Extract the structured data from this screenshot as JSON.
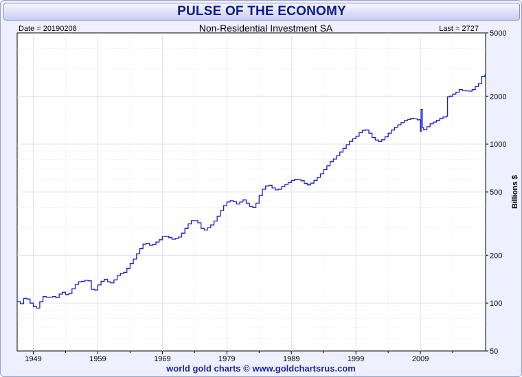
{
  "header": {
    "title": "PULSE OF THE ECONOMY"
  },
  "chart_header": {
    "date_label": "Date = 20190208",
    "last_label": "Last = 2727"
  },
  "footer": {
    "credit": "world gold charts © www.goldchartsrus.com"
  },
  "colors": {
    "line": "#1a1adc",
    "grid": "#d7dcea",
    "title_text": "#0a1a8a",
    "footer_text": "#1a2aa0"
  },
  "chart_data": {
    "type": "line",
    "title": "Non-Residential Investment SA",
    "ylabel": "Billions $",
    "xlabel": "",
    "y_scale": "log",
    "ylim": [
      50,
      5000
    ],
    "xlim": [
      1946.5,
      2019.1
    ],
    "y_ticks": [
      {
        "value": 50,
        "label": "50"
      },
      {
        "value": 100,
        "label": "100"
      },
      {
        "value": 200,
        "label": "200"
      },
      {
        "value": 500,
        "label": "500"
      },
      {
        "value": 1000,
        "label": "1000"
      },
      {
        "value": 2000,
        "label": "2000"
      },
      {
        "value": 5000,
        "label": "5000"
      }
    ],
    "x_ticks": [
      {
        "value": 1949,
        "label": "1949"
      },
      {
        "value": 1959,
        "label": "1959"
      },
      {
        "value": 1969,
        "label": "1969"
      },
      {
        "value": 1979,
        "label": "1979"
      },
      {
        "value": 1989,
        "label": "1989"
      },
      {
        "value": 1999,
        "label": "1999"
      },
      {
        "value": 2009,
        "label": "2009"
      }
    ],
    "grid": true,
    "series": [
      {
        "values": [
          [
            1946.5,
            102
          ],
          [
            1947.0,
            99
          ],
          [
            1947.5,
            107
          ],
          [
            1948.0,
            106
          ],
          [
            1948.5,
            100
          ],
          [
            1949.0,
            95
          ],
          [
            1949.5,
            93
          ],
          [
            1950.0,
            102
          ],
          [
            1950.5,
            110
          ],
          [
            1951.0,
            109
          ],
          [
            1951.5,
            109
          ],
          [
            1952.0,
            110
          ],
          [
            1952.5,
            108
          ],
          [
            1953.0,
            114
          ],
          [
            1953.5,
            117
          ],
          [
            1954.0,
            113
          ],
          [
            1954.5,
            115
          ],
          [
            1955.0,
            123
          ],
          [
            1955.5,
            131
          ],
          [
            1956.0,
            136
          ],
          [
            1956.5,
            137
          ],
          [
            1957.0,
            139
          ],
          [
            1957.5,
            138
          ],
          [
            1958.0,
            122
          ],
          [
            1958.5,
            121
          ],
          [
            1959.0,
            130
          ],
          [
            1959.5,
            137
          ],
          [
            1960.0,
            141
          ],
          [
            1960.5,
            136
          ],
          [
            1961.0,
            134
          ],
          [
            1961.5,
            140
          ],
          [
            1962.0,
            149
          ],
          [
            1962.5,
            154
          ],
          [
            1963.0,
            156
          ],
          [
            1963.5,
            165
          ],
          [
            1964.0,
            177
          ],
          [
            1964.5,
            189
          ],
          [
            1965.0,
            204
          ],
          [
            1965.5,
            220
          ],
          [
            1966.0,
            235
          ],
          [
            1966.5,
            237
          ],
          [
            1967.0,
            231
          ],
          [
            1967.5,
            234
          ],
          [
            1968.0,
            242
          ],
          [
            1968.5,
            250
          ],
          [
            1969.0,
            262
          ],
          [
            1969.5,
            263
          ],
          [
            1970.0,
            258
          ],
          [
            1970.5,
            252
          ],
          [
            1971.0,
            255
          ],
          [
            1971.5,
            260
          ],
          [
            1972.0,
            275
          ],
          [
            1972.5,
            295
          ],
          [
            1973.0,
            315
          ],
          [
            1973.5,
            330
          ],
          [
            1974.0,
            330
          ],
          [
            1974.5,
            320
          ],
          [
            1975.0,
            295
          ],
          [
            1975.5,
            288
          ],
          [
            1976.0,
            298
          ],
          [
            1976.5,
            310
          ],
          [
            1977.0,
            328
          ],
          [
            1977.5,
            352
          ],
          [
            1978.0,
            382
          ],
          [
            1978.5,
            410
          ],
          [
            1979.0,
            432
          ],
          [
            1979.5,
            440
          ],
          [
            1980.0,
            434
          ],
          [
            1980.5,
            420
          ],
          [
            1981.0,
            432
          ],
          [
            1981.5,
            445
          ],
          [
            1982.0,
            425
          ],
          [
            1982.5,
            405
          ],
          [
            1983.0,
            400
          ],
          [
            1983.5,
            425
          ],
          [
            1984.0,
            475
          ],
          [
            1984.5,
            520
          ],
          [
            1985.0,
            545
          ],
          [
            1985.5,
            550
          ],
          [
            1986.0,
            530
          ],
          [
            1986.5,
            515
          ],
          [
            1987.0,
            520
          ],
          [
            1987.5,
            540
          ],
          [
            1988.0,
            557
          ],
          [
            1988.5,
            572
          ],
          [
            1989.0,
            590
          ],
          [
            1989.5,
            600
          ],
          [
            1990.0,
            597
          ],
          [
            1990.5,
            588
          ],
          [
            1991.0,
            565
          ],
          [
            1991.5,
            554
          ],
          [
            1992.0,
            568
          ],
          [
            1992.5,
            590
          ],
          [
            1993.0,
            618
          ],
          [
            1993.5,
            650
          ],
          [
            1994.0,
            690
          ],
          [
            1994.5,
            730
          ],
          [
            1995.0,
            775
          ],
          [
            1995.5,
            805
          ],
          [
            1996.0,
            845
          ],
          [
            1996.5,
            890
          ],
          [
            1997.0,
            940
          ],
          [
            1997.5,
            990
          ],
          [
            1998.0,
            1040
          ],
          [
            1998.5,
            1080
          ],
          [
            1999.0,
            1120
          ],
          [
            1999.5,
            1180
          ],
          [
            2000.0,
            1220
          ],
          [
            2000.5,
            1225
          ],
          [
            2001.0,
            1170
          ],
          [
            2001.5,
            1100
          ],
          [
            2002.0,
            1060
          ],
          [
            2002.5,
            1040
          ],
          [
            2003.0,
            1065
          ],
          [
            2003.5,
            1110
          ],
          [
            2004.0,
            1170
          ],
          [
            2004.5,
            1225
          ],
          [
            2005.0,
            1275
          ],
          [
            2005.5,
            1320
          ],
          [
            2006.0,
            1365
          ],
          [
            2006.5,
            1405
          ],
          [
            2007.0,
            1425
          ],
          [
            2007.5,
            1450
          ],
          [
            2008.0,
            1440
          ],
          [
            2008.5,
            1420
          ],
          [
            2009.0,
            1200
          ],
          [
            2009.1,
            1650
          ],
          [
            2009.3,
            1270
          ],
          [
            2009.5,
            1230
          ],
          [
            2010.0,
            1285
          ],
          [
            2010.5,
            1340
          ],
          [
            2011.0,
            1375
          ],
          [
            2011.5,
            1410
          ],
          [
            2012.0,
            1450
          ],
          [
            2012.5,
            1480
          ],
          [
            2013.0,
            1500
          ],
          [
            2013.2,
            1980
          ],
          [
            2013.5,
            2000
          ],
          [
            2014.0,
            2060
          ],
          [
            2014.5,
            2120
          ],
          [
            2015.0,
            2200
          ],
          [
            2015.5,
            2170
          ],
          [
            2016.0,
            2160
          ],
          [
            2016.5,
            2150
          ],
          [
            2017.0,
            2200
          ],
          [
            2017.5,
            2300
          ],
          [
            2018.0,
            2400
          ],
          [
            2018.5,
            2660
          ],
          [
            2019.0,
            2727
          ]
        ]
      }
    ]
  }
}
